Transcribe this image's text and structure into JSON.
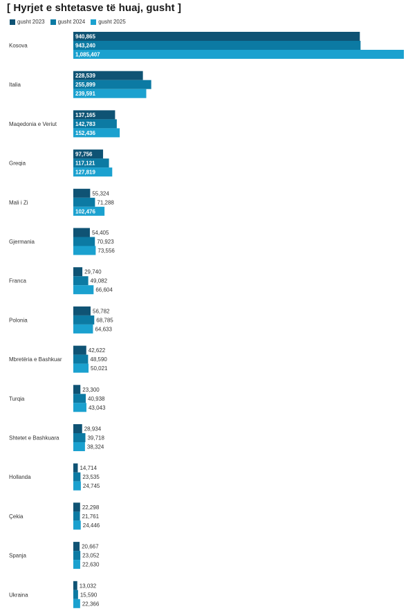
{
  "colors": {
    "series_0": "#0f5374",
    "series_1": "#0c7aa3",
    "series_2": "#1ba1cf"
  },
  "chart_data": {
    "type": "bar",
    "orientation": "horizontal",
    "title": "[ Hyrjet e shtetasve të huaj, gusht ]",
    "legend_position": "top-left",
    "xlim": [
      0,
      1085407
    ],
    "grid": false,
    "categories": [
      "Kosova",
      "Italia",
      "Maqedonia e Veriut",
      "Greqia",
      "Mali i Zi",
      "Gjermania",
      "Franca",
      "Polonia",
      "Mbretëria e Bashkuar",
      "Turqia",
      "Shtetet e Bashkuara",
      "Hollanda",
      "Çekia",
      "Spanja",
      "Ukraina"
    ],
    "series": [
      {
        "name": "gusht 2023",
        "values": [
          940865,
          228539,
          137165,
          97756,
          55324,
          54405,
          29740,
          56782,
          42622,
          23300,
          28934,
          14714,
          22298,
          20667,
          13032
        ],
        "labels": [
          "940,865",
          "228,539",
          "137,165",
          "97,756",
          "55,324",
          "54,405",
          "29,740",
          "56,782",
          "42,622",
          "23,300",
          "28,934",
          "14,714",
          "22,298",
          "20,667",
          "13,032"
        ]
      },
      {
        "name": "gusht 2024",
        "values": [
          943240,
          255899,
          142783,
          117121,
          71288,
          70923,
          49082,
          68785,
          48590,
          40938,
          39718,
          23535,
          21761,
          23052,
          15590
        ],
        "labels": [
          "943,240",
          "255,899",
          "142,783",
          "117,121",
          "71,288",
          "70,923",
          "49,082",
          "68,785",
          "48,590",
          "40,938",
          "39,718",
          "23,535",
          "21,761",
          "23,052",
          "15,590"
        ]
      },
      {
        "name": "gusht 2025",
        "values": [
          1085407,
          239591,
          152436,
          127819,
          102476,
          73556,
          66604,
          64633,
          50021,
          43043,
          38324,
          24745,
          24446,
          22630,
          22366
        ],
        "labels": [
          "1,085,407",
          "239,591",
          "152,436",
          "127,819",
          "102,476",
          "73,556",
          "66,604",
          "64,633",
          "50,021",
          "43,043",
          "38,324",
          "24,745",
          "24,446",
          "22,630",
          "22,366"
        ]
      }
    ]
  }
}
